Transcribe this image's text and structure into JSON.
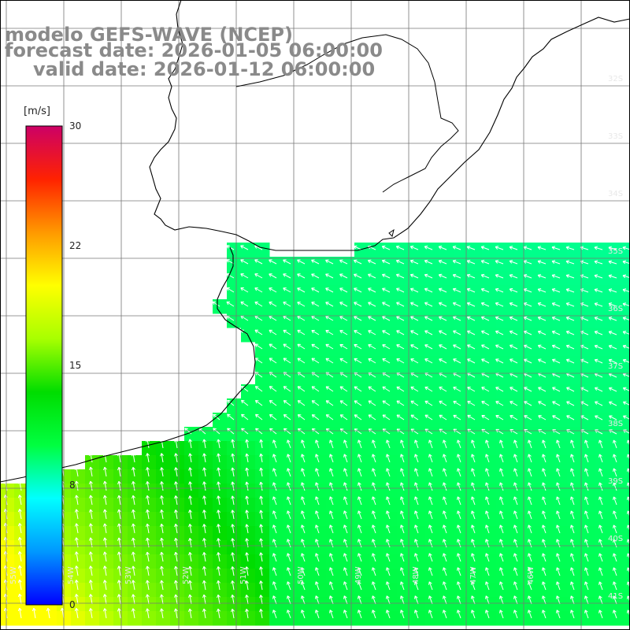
{
  "title": {
    "line1": "modelo GEFS-WAVE (NCEP)",
    "line2": "forecast date: 2026-01-05 06:00:00",
    "line3": "valid date: 2026-01-12 06:00:00"
  },
  "colorbar": {
    "unit": "[m/s]",
    "min": 0,
    "max": 30,
    "ticks": [
      "30",
      "22",
      "15",
      "8",
      "0"
    ],
    "colors": [
      "#0000ff",
      "#0098ff",
      "#00ffff",
      "#00ff40",
      "#00dd00",
      "#a8ff00",
      "#ffff00",
      "#ff9900",
      "#ff2200",
      "#cc0066"
    ]
  },
  "map": {
    "field": "wind speed and direction",
    "grid": true,
    "lat_labels": [
      "32S",
      "33S",
      "34S",
      "35S",
      "36S",
      "37S",
      "38S",
      "39S",
      "40S",
      "41S"
    ],
    "lon_labels": [
      "55W",
      "54W",
      "53W",
      "52W",
      "51W",
      "50W",
      "49W",
      "48W",
      "47W",
      "46W"
    ],
    "land_color": "#ffffff",
    "coast_color": "#000000",
    "arrow_color": "#ffffff"
  }
}
